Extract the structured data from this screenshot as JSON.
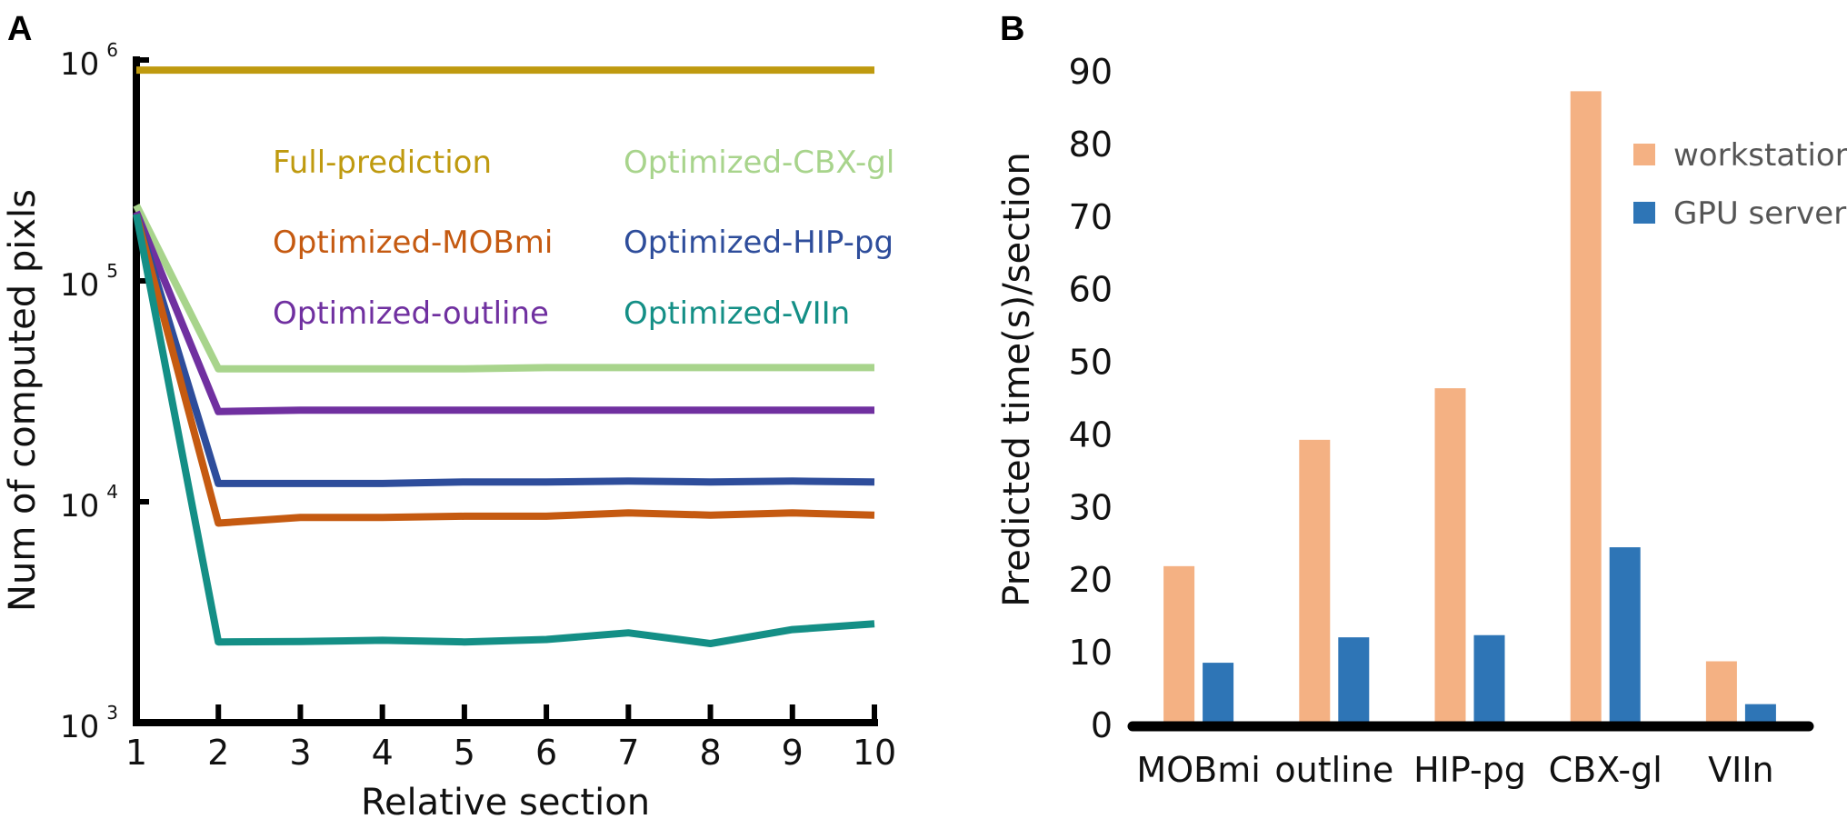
{
  "panels": {
    "a": "A",
    "b": "B"
  },
  "chart_data": [
    {
      "type": "line",
      "panel": "A",
      "xlabel": "Relative section",
      "ylabel": "Num of computed pixls",
      "yscale": "log",
      "ylim": [
        1000,
        1000000
      ],
      "x": [
        1,
        2,
        3,
        4,
        5,
        6,
        7,
        8,
        9,
        10
      ],
      "yticks": [
        {
          "base": "10",
          "exp": "3",
          "value": 1000
        },
        {
          "base": "10",
          "exp": "4",
          "value": 10000
        },
        {
          "base": "10",
          "exp": "5",
          "value": 100000
        },
        {
          "base": "10",
          "exp": "6",
          "value": 1000000
        }
      ],
      "series": [
        {
          "name": "Full-prediction",
          "color": "#bf9a0f",
          "values": [
            900000,
            900000,
            900000,
            900000,
            900000,
            900000,
            900000,
            900000,
            900000,
            900000
          ]
        },
        {
          "name": "Optimized-CBX-gl",
          "color": "#a8d48c",
          "values": [
            220000,
            40000,
            40000,
            40000,
            40000,
            40500,
            40500,
            40500,
            40500,
            40500
          ]
        },
        {
          "name": "Optimized-outline",
          "color": "#7030a0",
          "values": [
            205000,
            25600,
            26000,
            26000,
            26000,
            26000,
            26000,
            26000,
            26000,
            26000
          ]
        },
        {
          "name": "Optimized-HIP-pg",
          "color": "#2e4d9b",
          "values": [
            200000,
            12100,
            12100,
            12100,
            12300,
            12300,
            12400,
            12300,
            12400,
            12300
          ]
        },
        {
          "name": "Optimized-MOBmi",
          "color": "#c55a11",
          "values": [
            200000,
            8000,
            8500,
            8500,
            8600,
            8600,
            8900,
            8700,
            8900,
            8700
          ]
        },
        {
          "name": "Optimized-VIIn",
          "color": "#148f86",
          "values": [
            200000,
            2320,
            2330,
            2360,
            2320,
            2380,
            2550,
            2280,
            2640,
            2800
          ]
        }
      ],
      "legend": {
        "columns": [
          [
            "Full-prediction",
            "Optimized-MOBmi",
            "Optimized-outline"
          ],
          [
            "Optimized-CBX-gl",
            "Optimized-HIP-pg",
            "Optimized-VIIn"
          ]
        ],
        "location": "inside upper-right"
      }
    },
    {
      "type": "bar",
      "panel": "B",
      "ylabel": "Predicted time(s)/section",
      "ylim": [
        0,
        90
      ],
      "yticks": [
        0,
        10,
        20,
        30,
        40,
        50,
        60,
        70,
        80,
        90
      ],
      "categories": [
        "MOBmi",
        "outline",
        "HIP-pg",
        "CBX-gl",
        "VIIn"
      ],
      "series": [
        {
          "name": "workstation",
          "color": "#f4b183",
          "values": [
            21.8,
            39.2,
            46.3,
            87.2,
            8.7
          ]
        },
        {
          "name": "GPU server",
          "color": "#2e75b6",
          "values": [
            8.5,
            12.0,
            12.3,
            24.4,
            2.8
          ]
        }
      ],
      "legend": {
        "location": "top-right"
      }
    }
  ]
}
